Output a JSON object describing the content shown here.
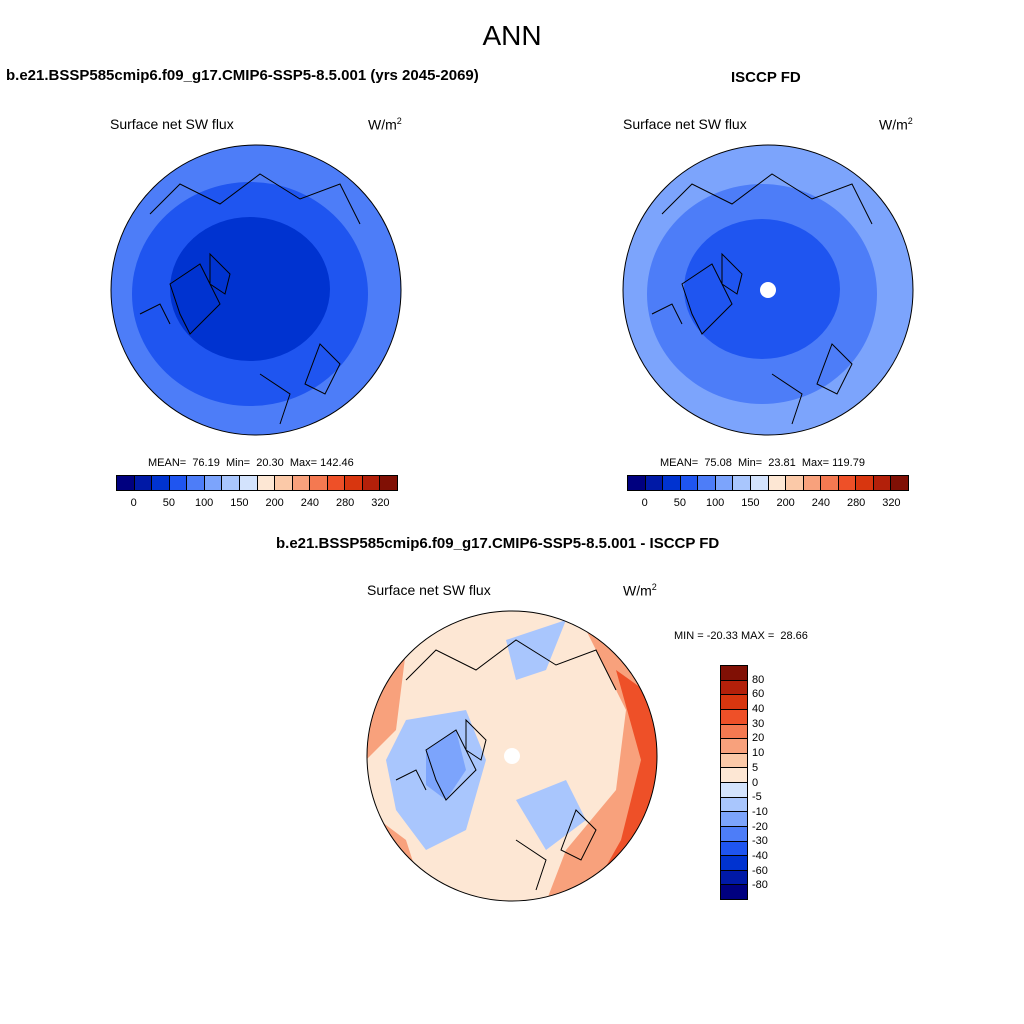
{
  "page": {
    "season": "ANN"
  },
  "panels": [
    {
      "title": "b.e21.BSSP585cmip6.f09_g17.CMIP6-SSP5-8.5.001 (yrs 2045-2069)",
      "variable": "Surface net SW flux",
      "units": "W/m",
      "units_sup": "2",
      "stats": "MEAN=  76.19  Min=  20.30  Max= 142.46"
    },
    {
      "title": "ISCCP FD",
      "variable": "Surface net SW flux",
      "units": "W/m",
      "units_sup": "2",
      "stats": "MEAN=  75.08  Min=  23.81  Max= 119.79"
    },
    {
      "title": "b.e21.BSSP585cmip6.f09_g17.CMIP6-SSP5-8.5.001 - ISCCP FD",
      "variable": "Surface net SW flux",
      "units": "W/m",
      "units_sup": "2",
      "stats": "MIN = -20.33 MAX =  28.66"
    }
  ],
  "colorbar_abs": {
    "labels": [
      "0",
      "50",
      "100",
      "150",
      "200",
      "240",
      "280",
      "320"
    ],
    "colors": [
      "#00007f",
      "#0019a6",
      "#0033d0",
      "#1f55f0",
      "#4d7df8",
      "#7ca4fc",
      "#a9c6fd",
      "#d3e3fd",
      "#fde7d4",
      "#fbc9a8",
      "#f8a17c",
      "#f47951",
      "#ee5028",
      "#d8360f",
      "#b3200a",
      "#801005"
    ]
  },
  "colorbar_diff": {
    "labels": [
      "80",
      "60",
      "40",
      "30",
      "20",
      "10",
      "5",
      "0",
      "-5",
      "-10",
      "-20",
      "-30",
      "-40",
      "-60",
      "-80"
    ],
    "colors": [
      "#801005",
      "#b3200a",
      "#d8360f",
      "#ee5028",
      "#f47951",
      "#f8a17c",
      "#fbc9a8",
      "#fde7d4",
      "#d3e3fd",
      "#a9c6fd",
      "#7ca4fc",
      "#4d7df8",
      "#1f55f0",
      "#0033d0",
      "#0019a6",
      "#00007f"
    ]
  },
  "colors": {
    "model_outer": "#4d7df8",
    "model_mid": "#1f55f0",
    "model_inner": "#0033d0",
    "obs_outer": "#7ca4fc",
    "obs_mid": "#4d7df8",
    "obs_inner": "#1f55f0",
    "diff_base": "#fde7d4",
    "diff_neg": "#a9c6fd",
    "diff_neg2": "#7ca4fc",
    "diff_pos": "#f8a17c",
    "diff_pos2": "#ee5028"
  }
}
